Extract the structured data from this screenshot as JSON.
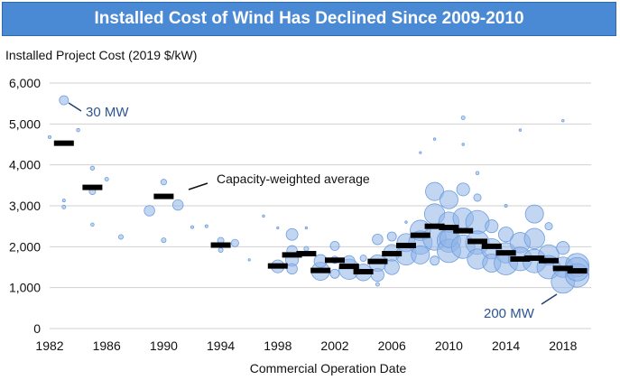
{
  "chart_data": {
    "type": "scatter",
    "title": "Installed Cost of Wind Has Declined Since 2009-2010",
    "ylabel": "Installed Project Cost (2019 $/kW)",
    "xlabel": "Commercial Operation Date",
    "ylim": [
      0,
      6000
    ],
    "yticks": [
      "0",
      "1,000",
      "2,000",
      "3,000",
      "4,000",
      "5,000",
      "6,000"
    ],
    "xlim": [
      1982,
      2020
    ],
    "xticks": [
      "1982",
      "1986",
      "1990",
      "1994",
      "1998",
      "2002",
      "2006",
      "2010",
      "2014",
      "2018"
    ],
    "grid": true,
    "bubble_color": "#8fb4e8",
    "average_color": "#000000",
    "annotations": {
      "small": "30 MW",
      "large": "200 MW",
      "average": "Capacity-weighted average"
    },
    "capacity_weighted_average": {
      "years": [
        1983,
        1985,
        1990,
        1994,
        1998,
        1999,
        2000,
        2001,
        2002,
        2003,
        2004,
        2005,
        2006,
        2007,
        2008,
        2009,
        2010,
        2011,
        2012,
        2013,
        2014,
        2015,
        2016,
        2017,
        2018,
        2019
      ],
      "values": [
        4530,
        3450,
        3230,
        2040,
        1530,
        1800,
        1830,
        1420,
        1670,
        1520,
        1390,
        1640,
        1830,
        2030,
        2280,
        2500,
        2470,
        2390,
        2130,
        2010,
        1850,
        1700,
        1720,
        1660,
        1470,
        1410
      ]
    },
    "projects_year_cost_mw": [
      [
        1982,
        4680,
        3
      ],
      [
        1983,
        5580,
        30
      ],
      [
        1983,
        3130,
        3
      ],
      [
        1983,
        2970,
        5
      ],
      [
        1984,
        4850,
        4
      ],
      [
        1985,
        3920,
        6
      ],
      [
        1985,
        3350,
        15
      ],
      [
        1985,
        2540,
        4
      ],
      [
        1986,
        3650,
        5
      ],
      [
        1987,
        2240,
        8
      ],
      [
        1989,
        2880,
        40
      ],
      [
        1990,
        3580,
        12
      ],
      [
        1990,
        2160,
        8
      ],
      [
        1991,
        3020,
        40
      ],
      [
        1992,
        2480,
        3
      ],
      [
        1993,
        2500,
        3
      ],
      [
        1994,
        2150,
        15
      ],
      [
        1994,
        1920,
        8
      ],
      [
        1995,
        2090,
        20
      ],
      [
        1996,
        1680,
        1
      ],
      [
        1997,
        2750,
        2
      ],
      [
        1998,
        1520,
        60
      ],
      [
        1998,
        2460,
        1
      ],
      [
        1999,
        2300,
        50
      ],
      [
        1999,
        1900,
        40
      ],
      [
        1999,
        1680,
        60
      ],
      [
        1999,
        1460,
        40
      ],
      [
        2000,
        1950,
        8
      ],
      [
        2000,
        2460,
        2
      ],
      [
        2001,
        1400,
        120
      ],
      [
        2001,
        1650,
        60
      ],
      [
        2002,
        2020,
        30
      ],
      [
        2002,
        1340,
        30
      ],
      [
        2002,
        1680,
        20
      ],
      [
        2003,
        1450,
        150
      ],
      [
        2003,
        1640,
        50
      ],
      [
        2004,
        1370,
        100
      ],
      [
        2004,
        1720,
        15
      ],
      [
        2005,
        2180,
        40
      ],
      [
        2005,
        1600,
        100
      ],
      [
        2005,
        1310,
        60
      ],
      [
        2005,
        1080,
        5
      ],
      [
        2006,
        2250,
        30
      ],
      [
        2006,
        1850,
        100
      ],
      [
        2006,
        1500,
        80
      ],
      [
        2007,
        2100,
        120
      ],
      [
        2007,
        1800,
        150
      ],
      [
        2007,
        2600,
        2
      ],
      [
        2008,
        2400,
        150
      ],
      [
        2008,
        2100,
        200
      ],
      [
        2008,
        1800,
        120
      ],
      [
        2008,
        4300,
        1
      ],
      [
        2009,
        3350,
        120
      ],
      [
        2009,
        2800,
        150
      ],
      [
        2009,
        2200,
        200
      ],
      [
        2009,
        1660,
        30
      ],
      [
        2009,
        4630,
        2
      ],
      [
        2010,
        3150,
        120
      ],
      [
        2010,
        2600,
        150
      ],
      [
        2010,
        2150,
        200
      ],
      [
        2010,
        1900,
        200
      ],
      [
        2010,
        2200,
        120
      ],
      [
        2011,
        3400,
        60
      ],
      [
        2011,
        2700,
        150
      ],
      [
        2011,
        2000,
        200
      ],
      [
        2011,
        5150,
        5
      ],
      [
        2011,
        4500,
        2
      ],
      [
        2012,
        2600,
        200
      ],
      [
        2012,
        2100,
        200
      ],
      [
        2012,
        1700,
        150
      ],
      [
        2012,
        3200,
        20
      ],
      [
        2012,
        3800,
        4
      ],
      [
        2013,
        2500,
        60
      ],
      [
        2013,
        1950,
        150
      ],
      [
        2013,
        1600,
        120
      ],
      [
        2014,
        2300,
        80
      ],
      [
        2014,
        1850,
        150
      ],
      [
        2014,
        1600,
        200
      ],
      [
        2014,
        3000,
        3
      ],
      [
        2015,
        2100,
        150
      ],
      [
        2015,
        1700,
        200
      ],
      [
        2015,
        4850,
        2
      ],
      [
        2016,
        2800,
        120
      ],
      [
        2016,
        2200,
        150
      ],
      [
        2016,
        1650,
        200
      ],
      [
        2017,
        2500,
        20
      ],
      [
        2017,
        1800,
        150
      ],
      [
        2017,
        1500,
        200
      ],
      [
        2018,
        1970,
        60
      ],
      [
        2018,
        1500,
        150
      ],
      [
        2018,
        1150,
        200
      ],
      [
        2018,
        5080,
        2
      ],
      [
        2019,
        1550,
        200
      ],
      [
        2019,
        1300,
        200
      ],
      [
        2019,
        1450,
        200
      ]
    ]
  }
}
